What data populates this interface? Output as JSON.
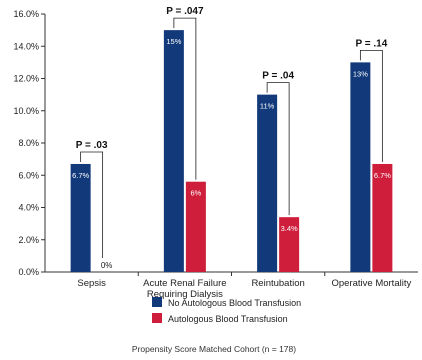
{
  "chart_data": {
    "type": "bar",
    "categories": [
      "Sepsis",
      "Acute Renal Failure\nRequiring Dialysis",
      "Reintubation",
      "Operative Mortality"
    ],
    "series": [
      {
        "name": "No Autologous Blood Transfusion",
        "values": [
          6.7,
          15,
          11,
          13
        ],
        "labels": [
          "6.7%",
          "15%",
          "11%",
          "13%"
        ],
        "color": "#123a7a"
      },
      {
        "name": "Autologous Blood Transfusion",
        "values": [
          0,
          5.6,
          3.4,
          6.7
        ],
        "labels": [
          "0%",
          "6%",
          "3.4%",
          "6.7%"
        ],
        "color": "#cf1e3b"
      }
    ],
    "p_values": [
      "P = .03",
      "P = .047",
      "P = .04",
      "P = .14"
    ],
    "y_ticks": [
      "0.0%",
      "2.0%",
      "4.0%",
      "6.0%",
      "8.0%",
      "10.0%",
      "12.0%",
      "14.0%",
      "16.0%"
    ],
    "ylim": [
      0,
      16
    ],
    "legend_position": "bottom",
    "footer": "Propensity Score Matched Cohort (n = 178)"
  }
}
